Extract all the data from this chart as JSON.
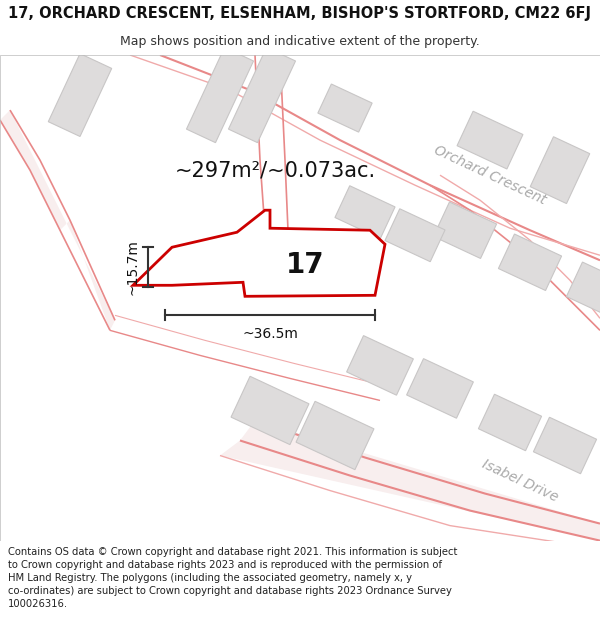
{
  "title_line1": "17, ORCHARD CRESCENT, ELSENHAM, BISHOP'S STORTFORD, CM22 6FJ",
  "title_line2": "Map shows position and indicative extent of the property.",
  "footer_lines": [
    "Contains OS data © Crown copyright and database right 2021. This information is subject to Crown copyright and database rights 2023 and is reproduced with the permission of",
    "HM Land Registry. The polygons (including the associated geometry, namely x, y",
    "co-ordinates) are subject to Crown copyright and database rights 2023 Ordnance Survey",
    "100026316."
  ],
  "area_label": "~297m²/~0.073ac.",
  "number_label": "17",
  "width_label": "~36.5m",
  "height_label": "~15.7m",
  "road_label_1": "Orchard Crescent",
  "road_label_2": "Isabel Drive",
  "map_bg": "#f7f5f5",
  "building_fill": "#dedcdc",
  "building_edge": "#c8c6c6",
  "road_color": "#f0aaaa",
  "road_edge_color": "#e88888",
  "highlight_fill": "#ffffff",
  "highlight_edge": "#cc0000",
  "dim_line_color": "#333333",
  "title_fontsize": 10.5,
  "subtitle_fontsize": 9,
  "footer_fontsize": 7.2,
  "area_fontsize": 15,
  "number_fontsize": 20,
  "dim_fontsize": 10
}
